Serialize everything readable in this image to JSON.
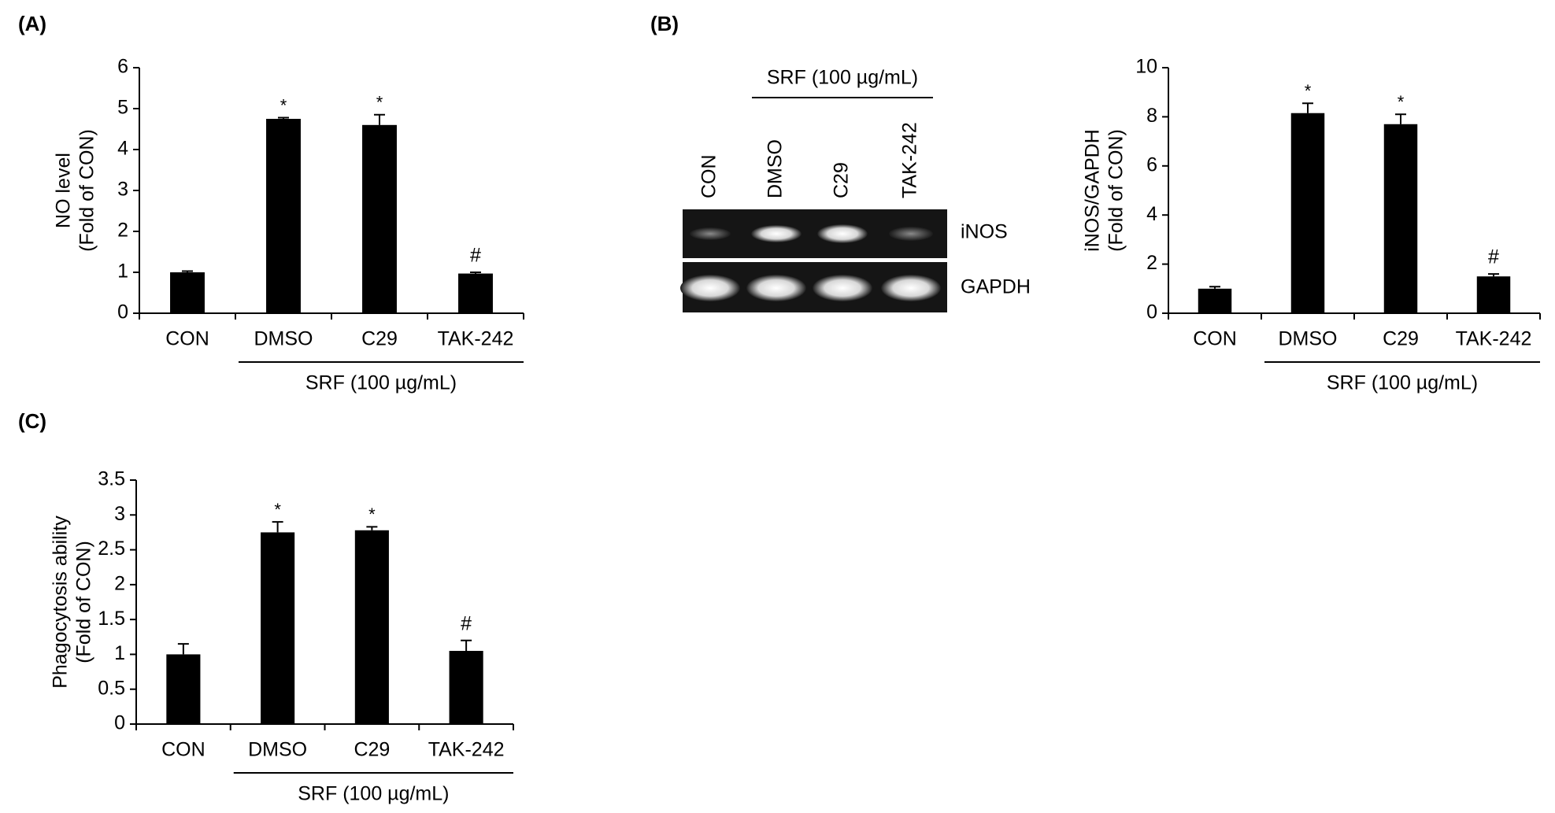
{
  "chart_data": [
    {
      "type": "bar",
      "panel": "(A)",
      "ylabel": [
        "NO level",
        "(Fold of CON)"
      ],
      "categories": [
        "CON",
        "DMSO",
        "C29",
        "TAK-242"
      ],
      "values": [
        1.0,
        4.75,
        4.6,
        0.97
      ],
      "errors": [
        0.03,
        0.03,
        0.25,
        0.03
      ],
      "annotations": [
        null,
        "*",
        "*",
        "#"
      ],
      "group_label": "SRF (100 µg/mL)",
      "color": "#000000",
      "ylim": [
        0,
        6
      ],
      "yticks": [
        0,
        1,
        2,
        3,
        4,
        5,
        6
      ]
    },
    {
      "type": "bar",
      "panel": "(B)",
      "ylabel": [
        "iNOS/GAPDH",
        "(Fold of CON)"
      ],
      "categories": [
        "CON",
        "DMSO",
        "C29",
        "TAK-242"
      ],
      "values": [
        1.0,
        8.15,
        7.7,
        1.5
      ],
      "errors": [
        0.08,
        0.4,
        0.4,
        0.1
      ],
      "annotations": [
        null,
        "*",
        "*",
        "#"
      ],
      "group_label": "SRF (100 µg/mL)",
      "color": "#000000",
      "ylim": [
        0,
        10
      ],
      "yticks": [
        0,
        2,
        4,
        6,
        8,
        10
      ]
    },
    {
      "type": "bar",
      "panel": "(C)",
      "ylabel": [
        "Phagocytosis ability",
        "(Fold of CON)"
      ],
      "categories": [
        "CON",
        "DMSO",
        "C29",
        "TAK-242"
      ],
      "values": [
        1.0,
        2.75,
        2.78,
        1.05
      ],
      "errors": [
        0.15,
        0.15,
        0.05,
        0.15
      ],
      "annotations": [
        null,
        "*",
        "*",
        "#"
      ],
      "group_label": "SRF (100 µg/mL)",
      "color": "#000000",
      "ylim": [
        0,
        3.5
      ],
      "yticks": [
        0,
        0.5,
        1,
        1.5,
        2,
        2.5,
        3,
        3.5
      ]
    }
  ],
  "gel": {
    "group_label": "SRF (100 µg/mL)",
    "lanes": [
      "CON",
      "DMSO",
      "C29",
      "TAK-242"
    ],
    "bands": [
      "iNOS",
      "GAPDH"
    ]
  }
}
